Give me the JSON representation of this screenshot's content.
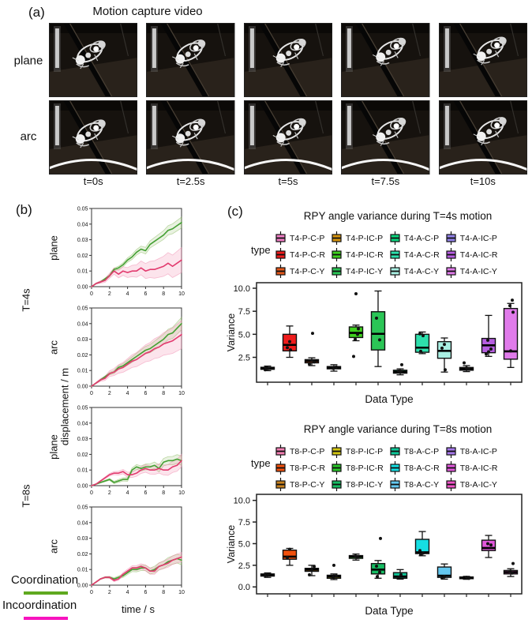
{
  "panel_a": {
    "label": "(a)",
    "title": "Motion capture video",
    "rows": [
      {
        "label": "plane"
      },
      {
        "label": "arc"
      }
    ],
    "times": [
      "t=0s",
      "t=2.5s",
      "t=5s",
      "t=7.5s",
      "t=10s"
    ]
  },
  "panel_b": {
    "label": "(b)",
    "legend": {
      "items": [
        {
          "label": "Coordination",
          "color": "#5FA91F"
        },
        {
          "label": "Incoordination",
          "color": "#F713BE"
        }
      ]
    }
  },
  "panel_c": {
    "label": "(c)",
    "legend_title": "type"
  },
  "chart_data": {
    "line_plots": {
      "type": "line",
      "xlabel": "time / s",
      "ylabel": "displacement / m",
      "xlim": [
        0,
        10
      ],
      "ylim": [
        0,
        0.05
      ],
      "xticks": [
        0,
        2,
        4,
        6,
        8,
        10
      ],
      "ytick_labels": [
        "0.00",
        "0.01",
        "0.02",
        "0.03",
        "0.04",
        "0.05"
      ],
      "x_step": 0.5,
      "series_styles": {
        "Coordination": {
          "line": "#44A033",
          "band": "rgba(120,175,70,0.16)",
          "band_edge": "rgba(120,175,70,0.45)"
        },
        "Incoordination": {
          "line": "#E23A6E",
          "band": "rgba(240,130,170,0.22)",
          "band_edge": "rgba(240,130,170,0.5)"
        }
      },
      "plots": [
        {
          "group": "T=4s",
          "row": "plane",
          "series": [
            {
              "name": "Coordination",
              "band_end": 0.0035,
              "y": [
                0,
                0.002,
                0.003,
                0.005,
                0.007,
                0.011,
                0.012,
                0.014,
                0.017,
                0.019,
                0.022,
                0.024,
                0.023,
                0.027,
                0.029,
                0.031,
                0.033,
                0.036,
                0.037,
                0.039,
                0.041
              ]
            },
            {
              "name": "Incoordination",
              "band_end": 0.008,
              "y": [
                0,
                0.002,
                0.003,
                0.004,
                0.007,
                0.01,
                0.008,
                0.01,
                0.009,
                0.01,
                0.01,
                0.012,
                0.01,
                0.011,
                0.011,
                0.012,
                0.013,
                0.015,
                0.013,
                0.015,
                0.017
              ]
            }
          ]
        },
        {
          "group": "",
          "row": "arc",
          "series": [
            {
              "name": "Coordination",
              "band_end": 0.004,
              "y": [
                0,
                0.002,
                0.004,
                0.006,
                0.008,
                0.009,
                0.012,
                0.013,
                0.015,
                0.017,
                0.019,
                0.021,
                0.023,
                0.024,
                0.026,
                0.028,
                0.03,
                0.033,
                0.034,
                0.037,
                0.04
              ]
            },
            {
              "name": "Incoordination",
              "band_end": 0.009,
              "y": [
                0,
                0.002,
                0.004,
                0.005,
                0.008,
                0.009,
                0.011,
                0.012,
                0.014,
                0.016,
                0.017,
                0.019,
                0.021,
                0.022,
                0.024,
                0.025,
                0.027,
                0.028,
                0.029,
                0.031,
                0.033
              ]
            }
          ]
        },
        {
          "group": "T=8s",
          "row": "plane",
          "series": [
            {
              "name": "Coordination",
              "band_end": 0.003,
              "y": [
                0,
                0.001,
                0.002,
                0.003,
                0.004,
                0.002,
                0.003,
                0.004,
                0.004,
                0.01,
                0.012,
                0.011,
                0.012,
                0.012,
                0.013,
                0.011,
                0.015,
                0.016,
                0.016,
                0.017,
                0.016
              ]
            },
            {
              "name": "Incoordination",
              "band_end": 0.004,
              "y": [
                0,
                0.001,
                0.003,
                0.005,
                0.007,
                0.008,
                0.008,
                0.009,
                0.007,
                0.007,
                0.008,
                0.01,
                0.011,
                0.01,
                0.01,
                0.011,
                0.01,
                0.01,
                0.012,
                0.013,
                0.016
              ]
            }
          ]
        },
        {
          "group": "",
          "row": "arc",
          "series": [
            {
              "name": "Coordination",
              "band_end": 0.003,
              "y": [
                0,
                0.002,
                0.004,
                0.005,
                0.005,
                0.004,
                0.005,
                0.006,
                0.008,
                0.01,
                0.01,
                0.011,
                0.011,
                0.009,
                0.01,
                0.012,
                0.013,
                0.015,
                0.016,
                0.017,
                0.016
              ]
            },
            {
              "name": "Incoordination",
              "band_end": 0.003,
              "y": [
                0,
                0.002,
                0.004,
                0.005,
                0.005,
                0.003,
                0.004,
                0.007,
                0.009,
                0.011,
                0.011,
                0.012,
                0.011,
                0.009,
                0.009,
                0.012,
                0.013,
                0.014,
                0.016,
                0.017,
                0.018
              ]
            }
          ]
        }
      ]
    },
    "box_plots": [
      {
        "type": "bar",
        "title": "RPY angle variance during T=4s motion",
        "legend_title": "type",
        "ylabel": "Variance",
        "xlabel": "Data Type",
        "ylim": [
          -0.2,
          10.6
        ],
        "yticks": [
          2.5,
          5.0,
          7.5,
          10.0
        ],
        "ytick_labels": [
          "2.5",
          "5.0",
          "7.5",
          "10.0"
        ],
        "boxes": [
          {
            "label": "T4-P-C-P",
            "color": "#F07EC5",
            "whislo": 1.05,
            "q1": 1.2,
            "med": 1.3,
            "q3": 1.42,
            "whishi": 1.55,
            "points": [
              1.15,
              1.3,
              1.38
            ],
            "outliers": []
          },
          {
            "label": "T4-P-C-R",
            "color": "#EE1C1C",
            "whislo": 2.5,
            "q1": 3.2,
            "med": 3.85,
            "q3": 5.0,
            "whishi": 5.9,
            "points": [
              4.2,
              3.55,
              3.3
            ],
            "outliers": []
          },
          {
            "label": "T4-P-C-Y",
            "color": "#E2571B",
            "whislo": 1.6,
            "q1": 1.9,
            "med": 2.1,
            "q3": 2.25,
            "whishi": 2.45,
            "points": [
              2.0,
              2.15,
              1.75
            ],
            "outliers": [
              5.1
            ]
          },
          {
            "label": "T4-P-IC-P",
            "color": "#D6940F",
            "whislo": 1.0,
            "q1": 1.25,
            "med": 1.38,
            "q3": 1.5,
            "whishi": 1.7,
            "points": [
              1.3,
              1.45
            ],
            "outliers": []
          },
          {
            "label": "T4-P-IC-R",
            "color": "#3ED01E",
            "whislo": 4.3,
            "q1": 4.65,
            "med": 5.15,
            "q3": 5.8,
            "whishi": 6.0,
            "points": [
              5.0,
              4.45,
              5.6
            ],
            "outliers": [
              9.4,
              2.6
            ]
          },
          {
            "label": "T4-P-IC-Y",
            "color": "#2BC556",
            "whislo": 1.5,
            "q1": 3.3,
            "med": 5.05,
            "q3": 7.45,
            "whishi": 9.7,
            "points": [
              6.75,
              4.4
            ],
            "outliers": []
          },
          {
            "label": "T4-A-C-P",
            "color": "#0CD47D",
            "whislo": 0.6,
            "q1": 0.78,
            "med": 0.92,
            "q3": 1.1,
            "whishi": 1.25,
            "points": [
              0.9,
              1.0
            ],
            "outliers": [
              1.7
            ]
          },
          {
            "label": "T4-A-C-R",
            "color": "#2EDFAC",
            "whislo": 2.9,
            "q1": 3.05,
            "med": 3.55,
            "q3": 5.0,
            "whishi": 5.25,
            "points": [
              5.05,
              4.85,
              3.15
            ],
            "outliers": []
          },
          {
            "label": "T4-A-C-Y",
            "color": "#A9EFE2",
            "whislo": 0.9,
            "q1": 2.4,
            "med": 3.2,
            "q3": 4.2,
            "whishi": 4.6,
            "points": [
              3.9,
              3.5,
              1.15
            ],
            "outliers": []
          },
          {
            "label": "T4-A-IC-P",
            "color": "#9282E8",
            "whislo": 0.95,
            "q1": 1.1,
            "med": 1.25,
            "q3": 1.4,
            "whishi": 1.6,
            "points": [
              1.2,
              1.35
            ],
            "outliers": [
              1.9
            ]
          },
          {
            "label": "T4-A-IC-R",
            "color": "#B65EE0",
            "whislo": 2.6,
            "q1": 3.0,
            "med": 3.8,
            "q3": 4.55,
            "whishi": 7.05,
            "points": [
              4.35,
              3.4,
              3.1,
              2.85
            ],
            "outliers": []
          },
          {
            "label": "T4-A-IC-Y",
            "color": "#E07BEA",
            "whislo": 1.4,
            "q1": 2.3,
            "med": 3.15,
            "q3": 7.8,
            "whishi": 8.35,
            "points": [
              8.7,
              8.1,
              7.4,
              3.2
            ],
            "outliers": []
          }
        ]
      },
      {
        "type": "bar",
        "title": "RPY angle variance during T=8s motion",
        "legend_title": "type",
        "ylabel": "Variance",
        "xlabel": "Data Type",
        "ylim": [
          -0.8,
          10.7
        ],
        "yticks": [
          0.0,
          2.5,
          5.0,
          7.5,
          10.0
        ],
        "ytick_labels": [
          "0.0",
          "2.5",
          "5.0",
          "7.5",
          "10.0"
        ],
        "boxes": [
          {
            "label": "T8-P-C-P",
            "color": "#F27FB2",
            "whislo": 1.1,
            "q1": 1.25,
            "med": 1.4,
            "q3": 1.5,
            "whishi": 1.62,
            "points": [
              1.3,
              1.45
            ],
            "outliers": []
          },
          {
            "label": "T8-P-C-R",
            "color": "#F2500C",
            "whislo": 2.5,
            "q1": 3.2,
            "med": 3.5,
            "q3": 4.25,
            "whishi": 4.45,
            "points": [
              4.35,
              3.4
            ],
            "outliers": []
          },
          {
            "label": "T8-P-C-Y",
            "color": "#C8821F",
            "whislo": 1.3,
            "q1": 1.8,
            "med": 2.0,
            "q3": 2.15,
            "whishi": 2.5,
            "points": [
              2.35,
              1.95,
              1.4
            ],
            "outliers": []
          },
          {
            "label": "T8-P-IC-P",
            "color": "#D2C513",
            "whislo": 0.85,
            "q1": 1.0,
            "med": 1.2,
            "q3": 1.35,
            "whishi": 1.5,
            "points": [
              1.1,
              1.28
            ],
            "outliers": [
              2.5
            ]
          },
          {
            "label": "T8-P-IC-R",
            "color": "#2AC62A",
            "whislo": 3.1,
            "q1": 3.3,
            "med": 3.5,
            "q3": 3.62,
            "whishi": 3.8,
            "points": [
              3.42,
              3.56
            ],
            "outliers": []
          },
          {
            "label": "T8-P-IC-Y",
            "color": "#15BC62",
            "whislo": 1.0,
            "q1": 1.5,
            "med": 2.0,
            "q3": 2.7,
            "whishi": 3.05,
            "points": [
              2.4,
              1.7,
              1.2
            ],
            "outliers": [
              5.6
            ]
          },
          {
            "label": "T8-A-C-P",
            "color": "#0FC798",
            "whislo": 0.9,
            "q1": 1.0,
            "med": 1.2,
            "q3": 1.65,
            "whishi": 2.0,
            "points": [
              1.4,
              1.1
            ],
            "outliers": []
          },
          {
            "label": "T8-A-C-R",
            "color": "#15DEE2",
            "whislo": 3.6,
            "q1": 3.85,
            "med": 4.0,
            "q3": 5.5,
            "whishi": 6.4,
            "points": [
              4.2,
              3.9,
              3.75
            ],
            "outliers": []
          },
          {
            "label": "T8-A-C-Y",
            "color": "#64C8F0",
            "whislo": 0.9,
            "q1": 1.1,
            "med": 1.3,
            "q3": 2.3,
            "whishi": 2.65,
            "points": [
              1.2,
              1.05
            ],
            "outliers": []
          },
          {
            "label": "T8-A-IC-P",
            "color": "#A678EA",
            "whislo": 0.88,
            "q1": 0.95,
            "med": 1.05,
            "q3": 1.15,
            "whishi": 1.22,
            "points": [
              1.0,
              1.1
            ],
            "outliers": []
          },
          {
            "label": "T8-A-IC-R",
            "color": "#E158DB",
            "whislo": 3.4,
            "q1": 4.2,
            "med": 4.5,
            "q3": 5.4,
            "whishi": 5.95,
            "points": [
              5.0,
              4.85
            ],
            "outliers": []
          },
          {
            "label": "T8-A-IC-Y",
            "color": "#F155C8",
            "whislo": 1.2,
            "q1": 1.5,
            "med": 1.7,
            "q3": 1.9,
            "whishi": 2.1,
            "points": [
              1.6,
              1.8
            ],
            "outliers": [
              2.7
            ]
          }
        ]
      }
    ]
  }
}
